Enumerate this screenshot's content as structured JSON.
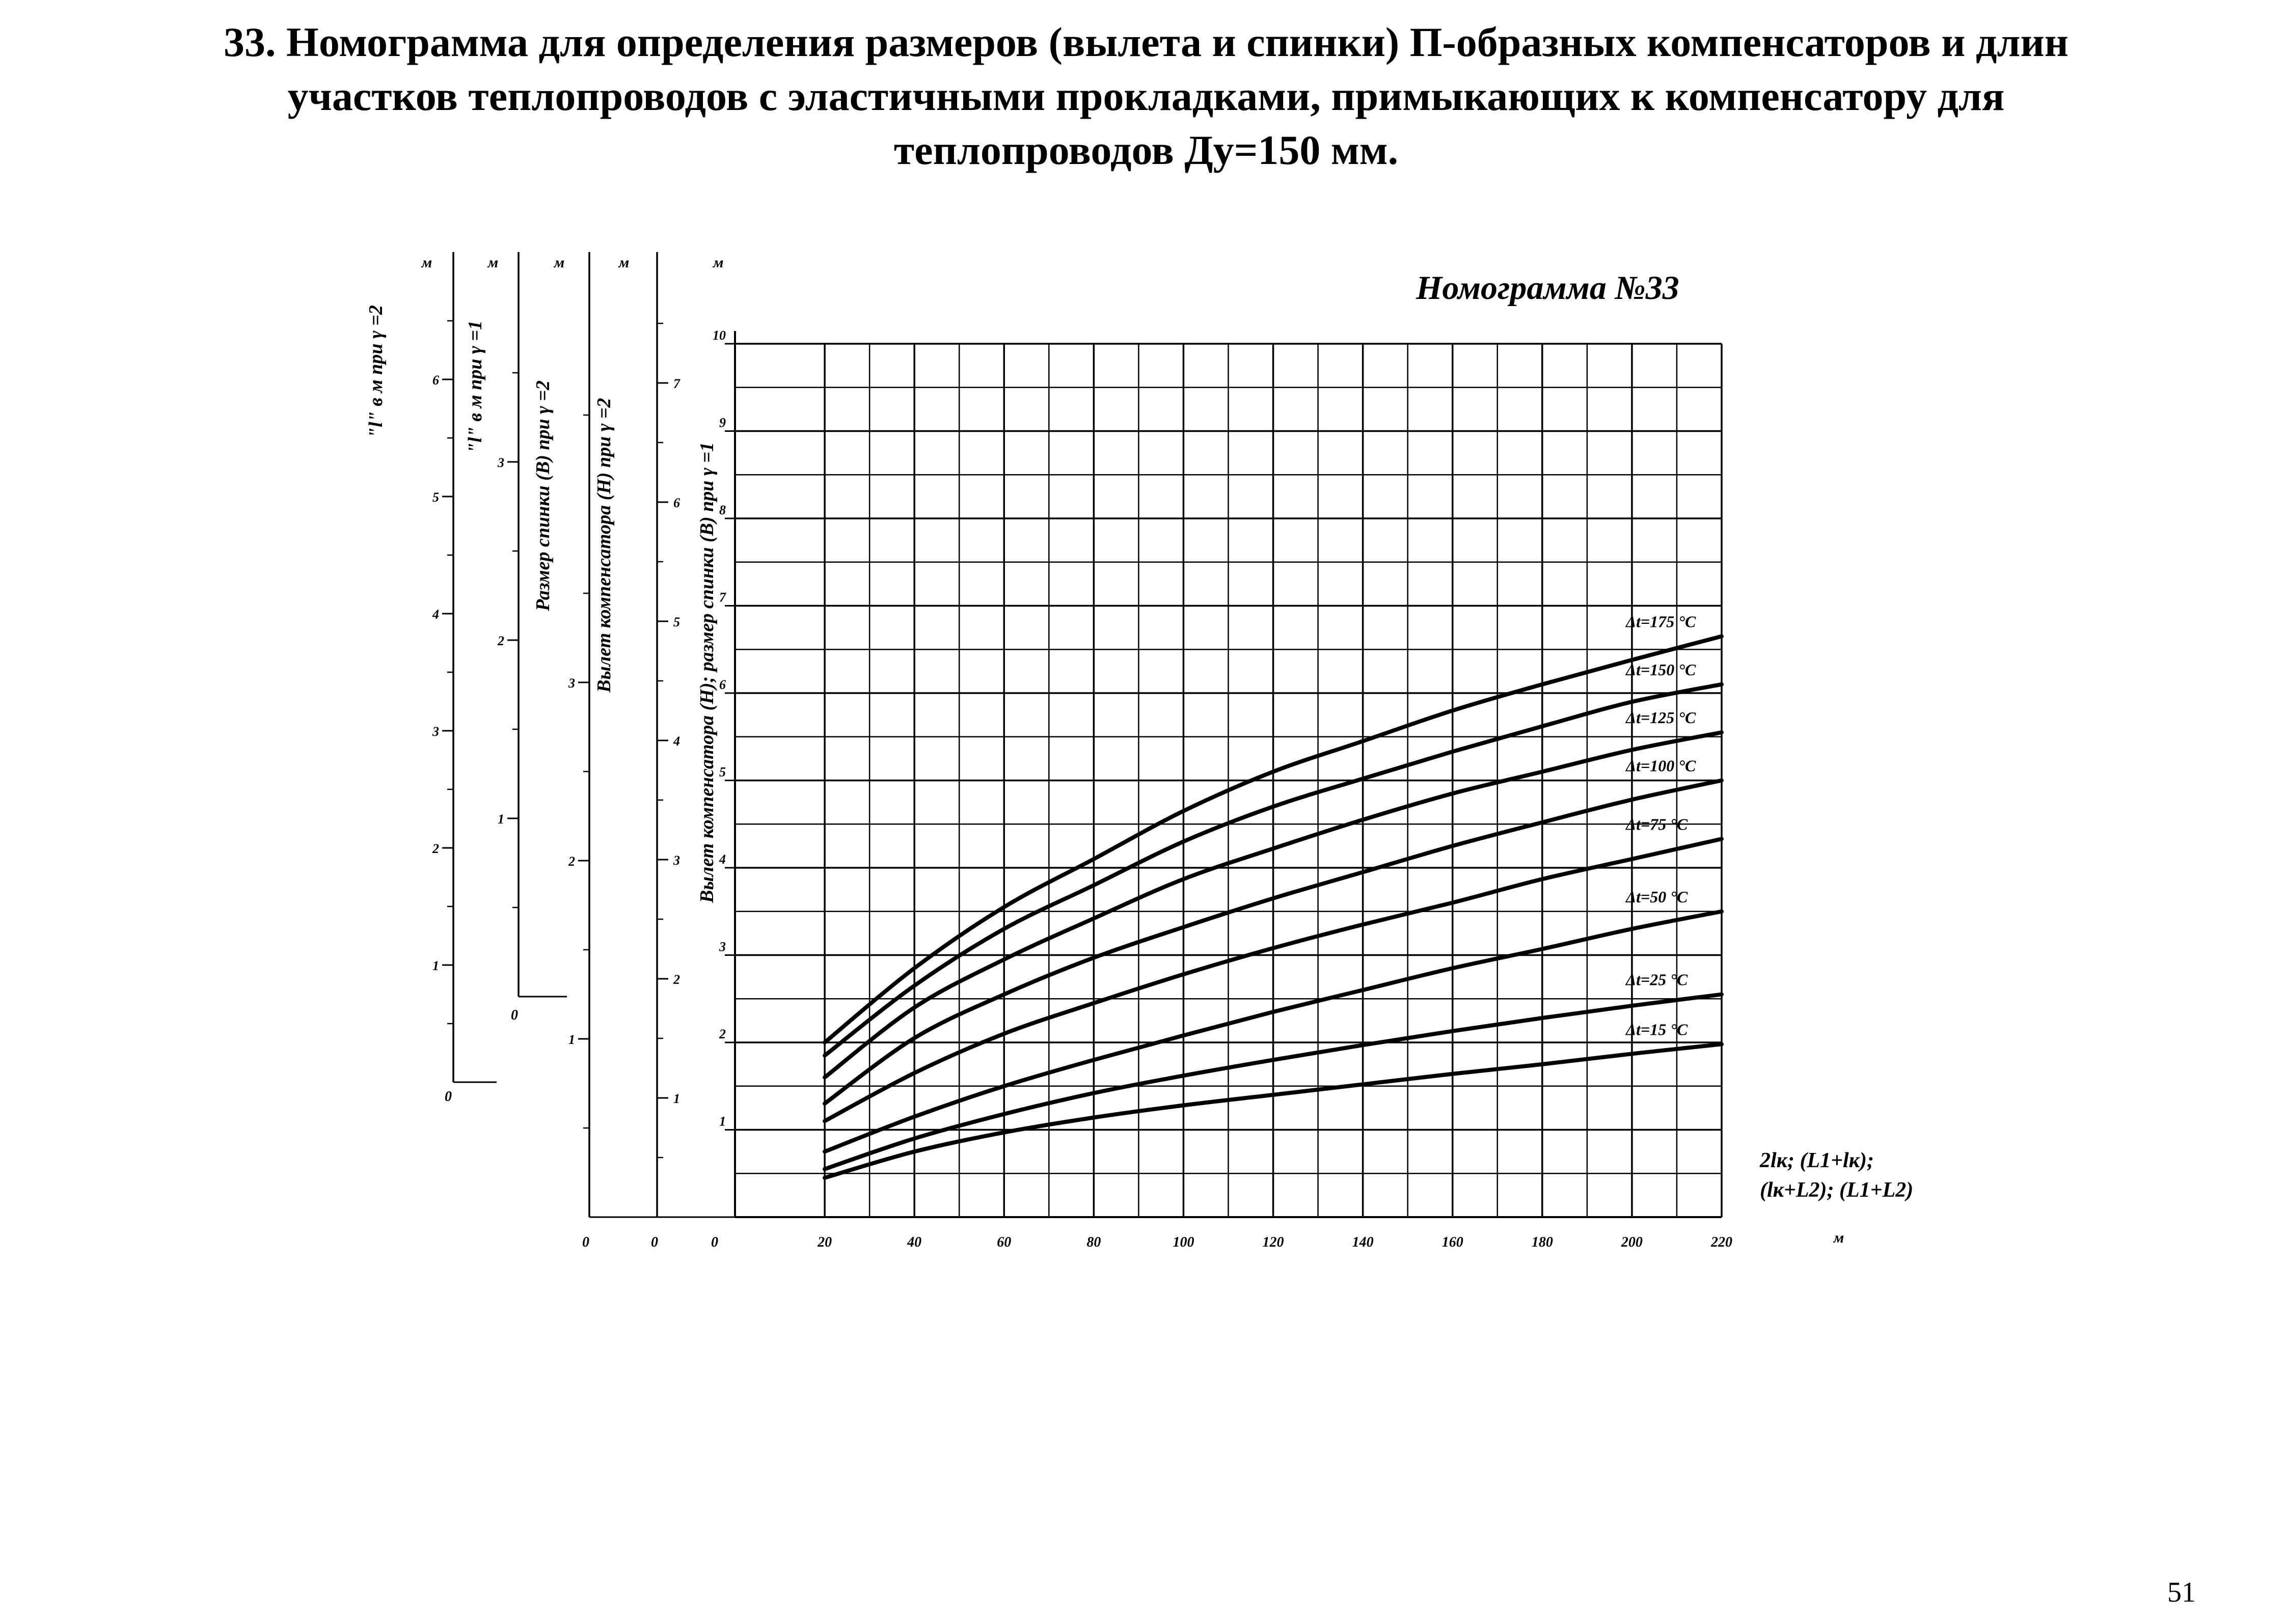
{
  "page": {
    "heading_lines": [
      "33. Номограмма для определения размеров (вылета и спинки) П-образных компенсаторов и длин",
      "участков теплопроводов с эластичными прокладками, примыкающих к компенсатору для",
      "теплопроводов Ду=150 мм."
    ],
    "page_number": "51"
  },
  "chart_data": {
    "type": "line",
    "title": "Номограмма №33",
    "x": [
      20,
      40,
      60,
      80,
      100,
      120,
      140,
      160,
      180,
      200,
      220
    ],
    "xlim": [
      0,
      220
    ],
    "x_tick_labels": [
      "0",
      "20",
      "40",
      "60",
      "80",
      "100",
      "120",
      "140",
      "160",
      "180",
      "200",
      "220"
    ],
    "xlabel_lines": [
      "2lк; (L1+lк);",
      "(lк+L2); (L1+L2)"
    ],
    "x_unit": "м",
    "ylim": [
      0,
      10
    ],
    "ylabel": "Вылет компенсатора (H); размер спинки (B) при γ =1",
    "y_unit": "м",
    "y_tick_labels": [
      "1",
      "2",
      "3",
      "4",
      "5",
      "6",
      "7",
      "8",
      "9",
      "10"
    ],
    "grid": true,
    "series": [
      {
        "name": "Δt=175 °C",
        "values": [
          2.0,
          2.85,
          3.55,
          4.1,
          4.65,
          5.1,
          5.45,
          5.8,
          6.1,
          6.38,
          6.65
        ]
      },
      {
        "name": "Δt=150 °C",
        "values": [
          1.85,
          2.65,
          3.3,
          3.8,
          4.3,
          4.7,
          5.02,
          5.33,
          5.62,
          5.9,
          6.1
        ]
      },
      {
        "name": "Δt=125 °C",
        "values": [
          1.6,
          2.4,
          2.95,
          3.42,
          3.87,
          4.22,
          4.55,
          4.85,
          5.1,
          5.35,
          5.55
        ]
      },
      {
        "name": "Δt=100 °C",
        "values": [
          1.3,
          2.05,
          2.55,
          2.97,
          3.32,
          3.65,
          3.95,
          4.25,
          4.52,
          4.78,
          5.0
        ]
      },
      {
        "name": "Δt=75 °C",
        "values": [
          1.1,
          1.65,
          2.1,
          2.45,
          2.78,
          3.08,
          3.35,
          3.6,
          3.87,
          4.1,
          4.33
        ]
      },
      {
        "name": "Δt=50 °C",
        "values": [
          0.75,
          1.15,
          1.5,
          1.8,
          2.08,
          2.35,
          2.6,
          2.85,
          3.07,
          3.3,
          3.5
        ]
      },
      {
        "name": "Δt=25 °C",
        "values": [
          0.55,
          0.9,
          1.18,
          1.42,
          1.62,
          1.8,
          1.97,
          2.13,
          2.28,
          2.42,
          2.55
        ]
      },
      {
        "name": "Δt=15 °C",
        "values": [
          0.45,
          0.75,
          0.97,
          1.14,
          1.28,
          1.4,
          1.52,
          1.64,
          1.75,
          1.87,
          1.98
        ]
      }
    ],
    "side_scales": [
      {
        "label": "\"l\" в м при γ =2",
        "unit": "м",
        "ticks": [
          0,
          1,
          2,
          3,
          4,
          5,
          6
        ],
        "tick_labels": [
          "0",
          "1",
          "2",
          "3",
          "4",
          "5",
          "6"
        ],
        "max": 7.5
      },
      {
        "label": "\"l\" в м при γ =1",
        "unit": "м",
        "ticks": [
          0,
          1,
          2,
          3
        ],
        "tick_labels": [
          "0",
          "1",
          "2",
          "3"
        ],
        "max": 4.2
      },
      {
        "label": "Размер спинки (B) при γ =2",
        "unit": "м",
        "ticks": [
          0,
          1,
          2,
          3
        ],
        "tick_labels": [
          "0",
          "1",
          "2",
          "3"
        ],
        "max": 5
      },
      {
        "label": "Вылет компенсатора (H) при γ =2",
        "unit": "м",
        "ticks": [
          0,
          1,
          2,
          3,
          4,
          5,
          6,
          7
        ],
        "tick_labels": [
          "0",
          "1",
          "2",
          "3",
          "4",
          "5",
          "6",
          "7"
        ],
        "max": 8.5
      }
    ]
  }
}
